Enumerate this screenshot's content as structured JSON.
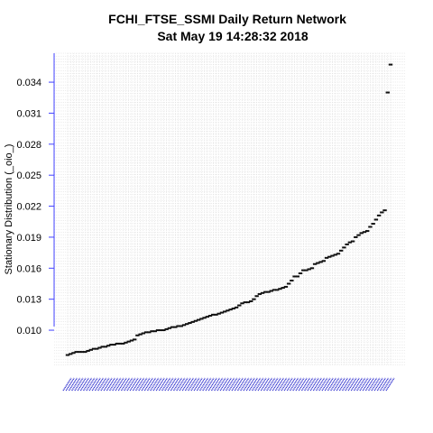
{
  "chart_data": {
    "type": "scatter",
    "title": "FCHI_FTSE_SSMI  Daily Return Network",
    "subtitle": "Sat May 19 14:28:32 2018",
    "xlabel": "",
    "ylabel": "Stationary Distribution (_oio_)",
    "yticks": [
      "0.010",
      "0.013",
      "0.016",
      "0.019",
      "0.022",
      "0.025",
      "0.028",
      "0.031",
      "0.034"
    ],
    "ylim": [
      0.0066,
      0.0368
    ],
    "grid": true,
    "values": [
      0.0076,
      0.0077,
      0.0078,
      0.0079,
      0.0079,
      0.0079,
      0.0079,
      0.008,
      0.0081,
      0.0082,
      0.0082,
      0.0083,
      0.0084,
      0.0084,
      0.0085,
      0.0086,
      0.0086,
      0.0087,
      0.0087,
      0.0087,
      0.0088,
      0.0089,
      0.009,
      0.0091,
      0.0095,
      0.0096,
      0.0097,
      0.0098,
      0.0098,
      0.0099,
      0.0099,
      0.01,
      0.01,
      0.01,
      0.0101,
      0.0102,
      0.0103,
      0.0103,
      0.0104,
      0.0104,
      0.0105,
      0.0106,
      0.0107,
      0.0108,
      0.0109,
      0.011,
      0.0111,
      0.0112,
      0.0113,
      0.0114,
      0.0115,
      0.0115,
      0.0116,
      0.0117,
      0.0118,
      0.0119,
      0.012,
      0.0121,
      0.0122,
      0.0124,
      0.0126,
      0.0127,
      0.0127,
      0.0128,
      0.013,
      0.0133,
      0.0135,
      0.0136,
      0.0137,
      0.0137,
      0.0138,
      0.0139,
      0.0139,
      0.014,
      0.0141,
      0.0142,
      0.0145,
      0.0148,
      0.0152,
      0.0152,
      0.0155,
      0.0158,
      0.0158,
      0.0159,
      0.016,
      0.0164,
      0.0165,
      0.0166,
      0.0167,
      0.017,
      0.0171,
      0.0172,
      0.0173,
      0.0174,
      0.0177,
      0.018,
      0.0183,
      0.0185,
      0.0186,
      0.019,
      0.0192,
      0.0194,
      0.0195,
      0.0196,
      0.02,
      0.0203,
      0.0207,
      0.0211,
      0.0214,
      0.0216,
      0.033,
      0.0357
    ]
  }
}
